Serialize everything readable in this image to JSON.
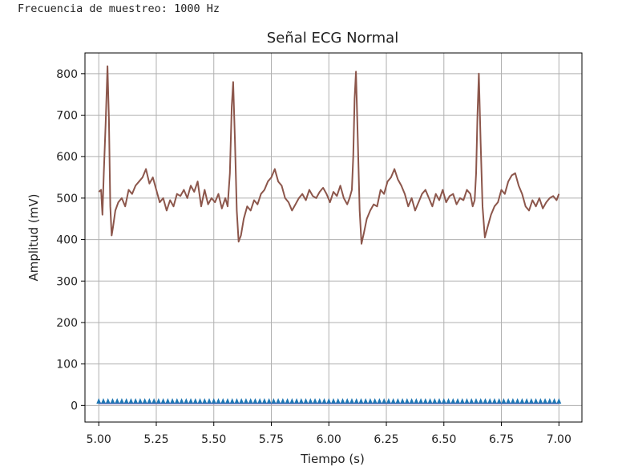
{
  "output": {
    "text": "Frecuencia de muestreo: 1000 Hz"
  },
  "chart_data": {
    "type": "line",
    "title": "Señal ECG Normal",
    "xlabel": "Tiempo (s)",
    "ylabel": "Amplitud (mV)",
    "xlim": [
      4.94,
      7.1
    ],
    "ylim": [
      -40,
      850
    ],
    "xticks": [
      5.0,
      5.25,
      5.5,
      5.75,
      6.0,
      6.25,
      6.5,
      6.75,
      7.0
    ],
    "xtick_labels": [
      "5.00",
      "5.25",
      "5.50",
      "5.75",
      "6.00",
      "6.25",
      "6.50",
      "6.75",
      "7.00"
    ],
    "yticks": [
      0,
      100,
      200,
      300,
      400,
      500,
      600,
      700,
      800
    ],
    "ytick_labels": [
      "0",
      "100",
      "200",
      "300",
      "400",
      "500",
      "600",
      "700",
      "800"
    ],
    "grid": true,
    "colors": {
      "ecg": "#8c564b",
      "baseline": "#9467bd",
      "markers": "#1f77b4"
    },
    "series": [
      {
        "values_note": "",
        "x": [
          5.0,
          5.01,
          5.016,
          5.022,
          5.03,
          5.038,
          5.044,
          5.05,
          5.056,
          5.062,
          5.072,
          5.085,
          5.1,
          5.115,
          5.13,
          5.145,
          5.16,
          5.175,
          5.19,
          5.205,
          5.22,
          5.235,
          5.25,
          5.265,
          5.28,
          5.295,
          5.31,
          5.325,
          5.34,
          5.355,
          5.37,
          5.385,
          5.4,
          5.415,
          5.43,
          5.445,
          5.46,
          5.475,
          5.49,
          5.505,
          5.52,
          5.535,
          5.55,
          5.56,
          5.57,
          5.578,
          5.584,
          5.592,
          5.6,
          5.608,
          5.618,
          5.63,
          5.645,
          5.66,
          5.675,
          5.69,
          5.705,
          5.72,
          5.735,
          5.75,
          5.765,
          5.78,
          5.795,
          5.81,
          5.825,
          5.84,
          5.855,
          5.87,
          5.885,
          5.9,
          5.915,
          5.93,
          5.945,
          5.96,
          5.975,
          5.99,
          6.005,
          6.02,
          6.035,
          6.05,
          6.065,
          6.08,
          6.09,
          6.1,
          6.106,
          6.112,
          6.118,
          6.126,
          6.134,
          6.142,
          6.152,
          6.165,
          6.18,
          6.195,
          6.21,
          6.225,
          6.24,
          6.255,
          6.27,
          6.285,
          6.3,
          6.315,
          6.33,
          6.345,
          6.36,
          6.375,
          6.39,
          6.405,
          6.42,
          6.435,
          6.45,
          6.465,
          6.48,
          6.495,
          6.51,
          6.525,
          6.54,
          6.555,
          6.57,
          6.585,
          6.6,
          6.615,
          6.625,
          6.634,
          6.64,
          6.646,
          6.652,
          6.66,
          6.668,
          6.678,
          6.69,
          6.705,
          6.72,
          6.735,
          6.75,
          6.765,
          6.78,
          6.795,
          6.81,
          6.825,
          6.84,
          6.855,
          6.87,
          6.885,
          6.9,
          6.915,
          6.93,
          6.945,
          6.96,
          6.975,
          6.99,
          7.0
        ],
        "y": [
          515,
          520,
          460,
          560,
          680,
          818,
          690,
          480,
          410,
          430,
          470,
          490,
          500,
          480,
          520,
          510,
          530,
          540,
          550,
          570,
          535,
          550,
          520,
          490,
          500,
          470,
          495,
          480,
          510,
          505,
          520,
          500,
          530,
          515,
          540,
          480,
          520,
          485,
          500,
          490,
          510,
          475,
          500,
          480,
          560,
          720,
          780,
          640,
          470,
          395,
          410,
          450,
          480,
          470,
          495,
          485,
          510,
          520,
          540,
          550,
          570,
          540,
          530,
          500,
          490,
          470,
          485,
          500,
          510,
          495,
          520,
          505,
          500,
          515,
          525,
          510,
          490,
          515,
          505,
          530,
          500,
          485,
          500,
          520,
          600,
          740,
          805,
          640,
          470,
          390,
          415,
          450,
          470,
          485,
          480,
          520,
          510,
          540,
          550,
          570,
          545,
          530,
          510,
          480,
          500,
          470,
          490,
          510,
          520,
          500,
          480,
          510,
          495,
          520,
          490,
          505,
          510,
          485,
          500,
          495,
          520,
          510,
          480,
          495,
          560,
          700,
          800,
          630,
          480,
          405,
          430,
          460,
          480,
          490,
          520,
          510,
          540,
          555,
          560,
          530,
          510,
          480,
          470,
          495,
          480,
          500,
          475,
          490,
          500,
          505,
          495,
          510
        ]
      },
      {
        "x": [
          5.0,
          7.0
        ],
        "y": [
          5,
          5
        ]
      }
    ]
  }
}
